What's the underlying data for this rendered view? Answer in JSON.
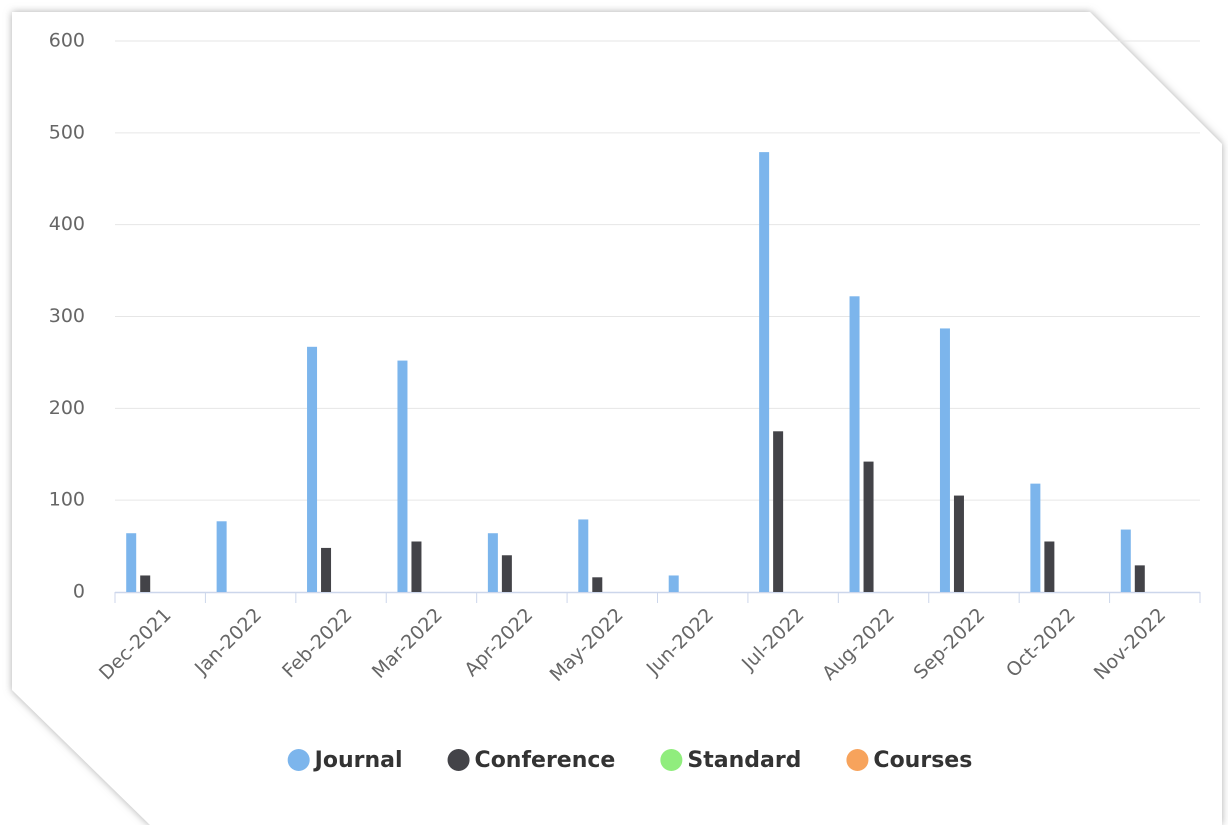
{
  "chart_data": {
    "type": "bar",
    "categories": [
      "Dec-2021",
      "Jan-2022",
      "Feb-2022",
      "Mar-2022",
      "Apr-2022",
      "May-2022",
      "Jun-2022",
      "Jul-2022",
      "Aug-2022",
      "Sep-2022",
      "Oct-2022",
      "Nov-2022"
    ],
    "series": [
      {
        "name": "Journal",
        "color": "#7cb5ec",
        "values": [
          64,
          77,
          267,
          252,
          64,
          79,
          18,
          479,
          322,
          287,
          118,
          68
        ]
      },
      {
        "name": "Conference",
        "color": "#434348",
        "values": [
          18,
          0,
          48,
          55,
          40,
          16,
          0,
          175,
          142,
          105,
          55,
          29
        ]
      },
      {
        "name": "Standard",
        "color": "#90ed7d",
        "values": [
          0,
          0,
          0,
          0,
          0,
          0,
          0,
          0,
          0,
          0,
          0,
          0
        ]
      },
      {
        "name": "Courses",
        "color": "#f7a35c",
        "values": [
          0,
          0,
          0,
          0,
          0,
          0,
          0,
          0,
          0,
          0,
          0,
          0
        ]
      }
    ],
    "ylim": [
      0,
      600
    ],
    "yticks": [
      0,
      100,
      200,
      300,
      400,
      500,
      600
    ],
    "grid": true,
    "legend": "bottom"
  }
}
